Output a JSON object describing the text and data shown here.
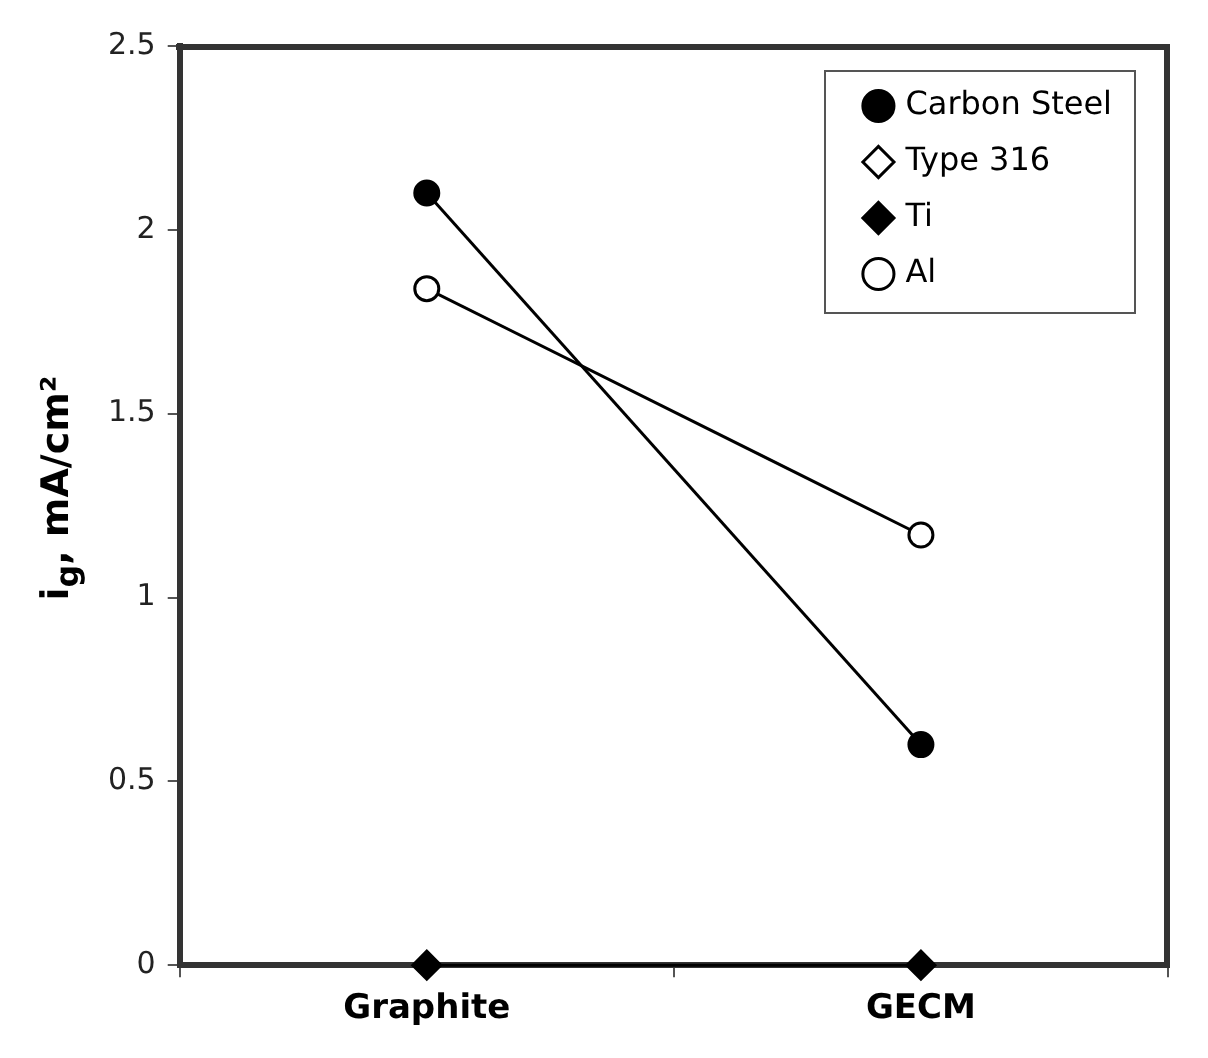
{
  "chart_data": {
    "type": "line",
    "ylabel": "i$_{g}$, mA/cm²",
    "categories": [
      "Graphite",
      "GECM"
    ],
    "series": [
      {
        "name": "Carbon Steel",
        "color": "#000000",
        "marker": "circle",
        "values": [
          2.1,
          0.6
        ]
      },
      {
        "name": "Type 316",
        "color": "#000000",
        "colors": [
          "#ffffff",
          "#ffffff"
        ],
        "marker": "diamond",
        "values": [
          null,
          null
        ]
      },
      {
        "name": "Ti",
        "color": "#000000",
        "marker": "diamond",
        "values": [
          0,
          0
        ]
      },
      {
        "name": "Al",
        "color": "#000000",
        "colors": [
          "#ffffff",
          "#ffffff"
        ],
        "marker": "circle",
        "values": [
          1.84,
          1.17
        ]
      }
    ],
    "ylim": [
      0,
      2.5
    ],
    "yticks": [
      0,
      0.5,
      1,
      1.5,
      2,
      2.5
    ],
    "grid": false,
    "legend": "top right"
  }
}
